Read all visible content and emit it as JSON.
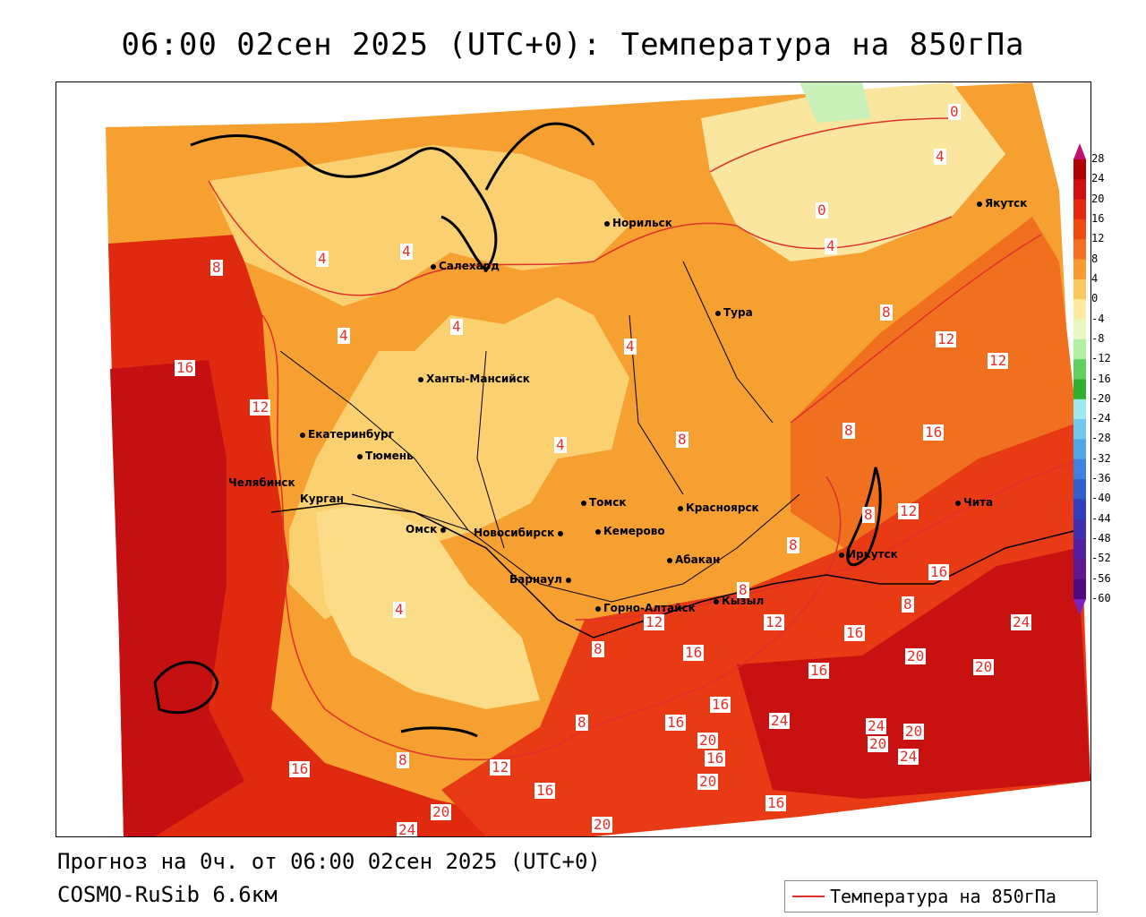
{
  "title": "06:00 02сен 2025 (UTC+0): Температура на 850гПа",
  "footer": {
    "forecast": "Прогноз на 0ч. от 06:00 02сен 2025 (UTC+0)",
    "model": "COSMO-RuSib 6.6км"
  },
  "legend": {
    "label": "Температура на 850гПа"
  },
  "colorbar": {
    "ticks": [
      "28",
      "24",
      "20",
      "16",
      "12",
      "8",
      "4",
      "0",
      "-4",
      "-8",
      "-12",
      "-16",
      "-20",
      "-24",
      "-28",
      "-32",
      "-36",
      "-40",
      "-44",
      "-48",
      "-52",
      "-56",
      "-60"
    ],
    "colors": [
      "#b00000",
      "#d01010",
      "#e52a10",
      "#f04a10",
      "#f57020",
      "#f89a30",
      "#fbc860",
      "#fbeaa0",
      "#e8f8c0",
      "#b0f0a0",
      "#60d060",
      "#30b030",
      "#a0e8f0",
      "#70c8f0",
      "#50a8e8",
      "#4080e0",
      "#3060d0",
      "#3040c0",
      "#4030b0",
      "#5020a0",
      "#601890",
      "#500a80"
    ]
  },
  "cities": [
    {
      "name": "Норильск"
    },
    {
      "name": "Якутск"
    },
    {
      "name": "Салехард"
    },
    {
      "name": "Тура"
    },
    {
      "name": "Ханты-Мансийск"
    },
    {
      "name": "Екатеринбург"
    },
    {
      "name": "Тюмень"
    },
    {
      "name": "Челябинск"
    },
    {
      "name": "Курган"
    },
    {
      "name": "Томск"
    },
    {
      "name": "Красноярск"
    },
    {
      "name": "Чита"
    },
    {
      "name": "Омск"
    },
    {
      "name": "Новосибирск"
    },
    {
      "name": "Кемерово"
    },
    {
      "name": "Абакан"
    },
    {
      "name": "Иркутск"
    },
    {
      "name": "Барнаул"
    },
    {
      "name": "Горно-Алтайск"
    },
    {
      "name": "Кызыл"
    }
  ],
  "contour_labels": [
    "0",
    "0",
    "4",
    "4",
    "4",
    "4",
    "4",
    "4",
    "4",
    "4",
    "4",
    "8",
    "8",
    "8",
    "8",
    "8",
    "8",
    "8",
    "8",
    "8",
    "8",
    "8",
    "12",
    "12",
    "12",
    "12",
    "12",
    "12",
    "12",
    "16",
    "16",
    "16",
    "16",
    "16",
    "16",
    "16",
    "16",
    "16",
    "16",
    "16",
    "16",
    "20",
    "20",
    "20",
    "20",
    "20",
    "20",
    "20",
    "20",
    "24",
    "24",
    "24",
    "24",
    "24"
  ]
}
